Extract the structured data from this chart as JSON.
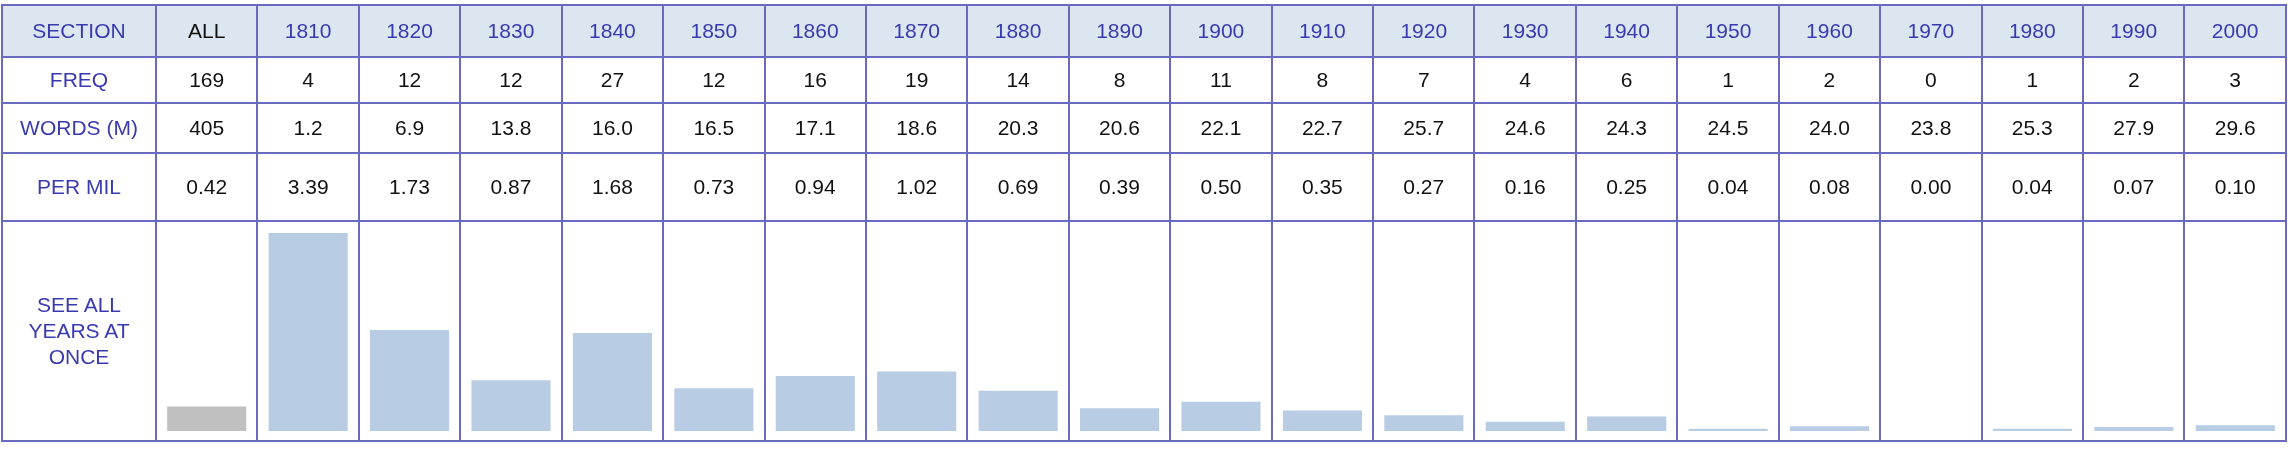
{
  "chart_data": {
    "type": "bar",
    "xlabel": "SECTION",
    "ylabel": "SEE ALL YEARS AT ONCE",
    "categories": [
      "ALL",
      "1810",
      "1820",
      "1830",
      "1840",
      "1850",
      "1860",
      "1870",
      "1880",
      "1890",
      "1900",
      "1910",
      "1920",
      "1930",
      "1940",
      "1950",
      "1960",
      "1970",
      "1980",
      "1990",
      "2000"
    ],
    "series": [
      {
        "name": "PER MIL",
        "values": [
          0.42,
          3.39,
          1.73,
          0.87,
          1.68,
          0.73,
          0.94,
          1.02,
          0.69,
          0.39,
          0.5,
          0.35,
          0.27,
          0.16,
          0.25,
          0.04,
          0.08,
          0,
          0.04,
          0.07,
          0.1
        ],
        "value_labels": [
          "0.42",
          "3.39",
          "1.73",
          "0.87",
          "1.68",
          "0.73",
          "0.94",
          "1.02",
          "0.69",
          "0.39",
          "0.50",
          "0.35",
          "0.27",
          "0.16",
          "0.25",
          "0.04",
          "0.08",
          "0.00",
          "0.04",
          "0.07",
          "0.10"
        ],
        "colors": [
          "#c0c0c0",
          "#b8cce4",
          "#b8cce4",
          "#b8cce4",
          "#b8cce4",
          "#b8cce4",
          "#b8cce4",
          "#b8cce4",
          "#b8cce4",
          "#b8cce4",
          "#b8cce4",
          "#b8cce4",
          "#b8cce4",
          "#b8cce4",
          "#b8cce4",
          "#b8cce4",
          "#b8cce4",
          "#b8cce4",
          "#b8cce4",
          "#b8cce4",
          "#b8cce4"
        ]
      }
    ],
    "annotations": [
      "FREQ",
      "169",
      "4",
      "12",
      "12",
      "27",
      "12",
      "16",
      "19",
      "14",
      "8",
      "11",
      "8",
      "7",
      "4",
      "6",
      "1",
      "2",
      "0",
      "1",
      "2",
      "3",
      "WORDS (M)",
      "405",
      "1.2",
      "6.9",
      "13.8",
      "16.0",
      "16.5",
      "17.1",
      "18.6",
      "20.3",
      "20.6",
      "22.1",
      "22.7",
      "25.7",
      "24.6",
      "24.3",
      "24.5",
      "24.0",
      "23.8",
      "25.3",
      "27.9",
      "29.6"
    ]
  }
}
